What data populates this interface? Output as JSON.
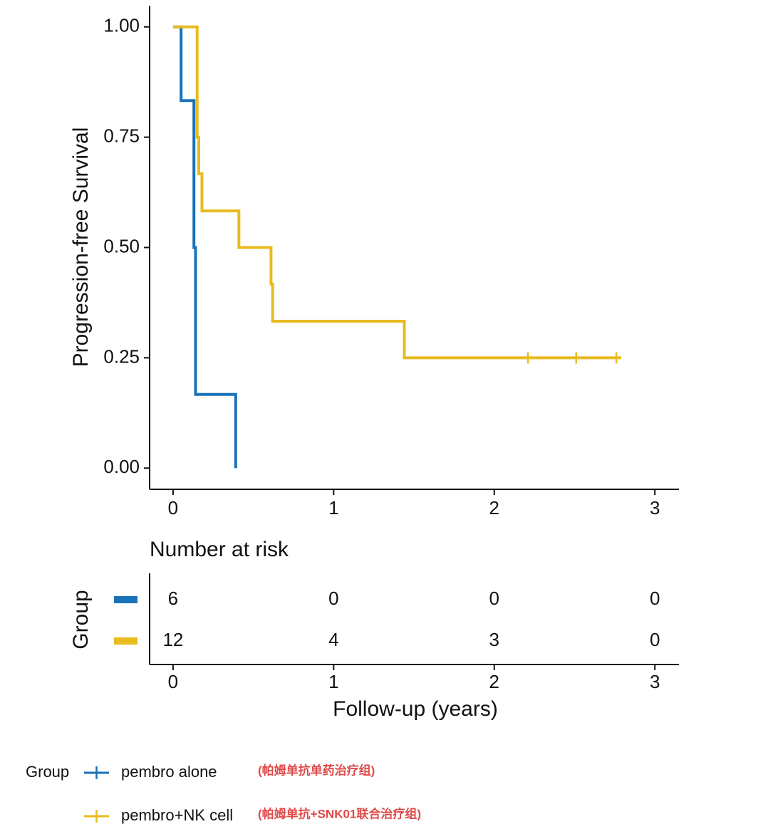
{
  "chart_data": {
    "type": "step",
    "y_label": "Progression-free Survival",
    "x_label": "Follow-up (years)",
    "xlim": [
      -0.146,
      3.15
    ],
    "ylim": [
      -0.048,
      1.048
    ],
    "xticks": [
      0,
      1,
      2,
      3
    ],
    "yticks": [
      {
        "value": 0,
        "label": "0.00"
      },
      {
        "value": 0.25,
        "label": "0.25"
      },
      {
        "value": 0.5,
        "label": "0.50"
      },
      {
        "value": 0.75,
        "label": "0.75"
      },
      {
        "value": 1,
        "label": "1.00"
      }
    ],
    "series": [
      {
        "name": "pembro alone",
        "color": "#1a72b9",
        "x": [
          0,
          0.05,
          0.13,
          0.14,
          0.39
        ],
        "values": [
          1,
          0.833,
          0.5,
          0.167,
          0
        ],
        "censored_x": []
      },
      {
        "name": "pembro+NK cell",
        "color": "#e8bb1e",
        "x": [
          0,
          0.15,
          0.16,
          0.18,
          0.41,
          0.61,
          0.62,
          1.44,
          2.79
        ],
        "values": [
          1,
          0.75,
          0.667,
          0.583,
          0.5,
          0.417,
          0.333,
          0.25,
          0.25
        ],
        "censored_x": [
          2.21,
          2.51,
          2.76
        ]
      }
    ],
    "risk_table": {
      "title": "Number at risk",
      "y_label": "Group",
      "rows": [
        [
          6,
          0,
          0,
          0
        ],
        [
          12,
          4,
          3,
          0
        ]
      ]
    },
    "legend": {
      "title": "Group",
      "notes": [
        "(帕姆单抗单药治疗组)",
        "(帕姆单抗+SNK01联合治疗组)"
      ]
    }
  }
}
